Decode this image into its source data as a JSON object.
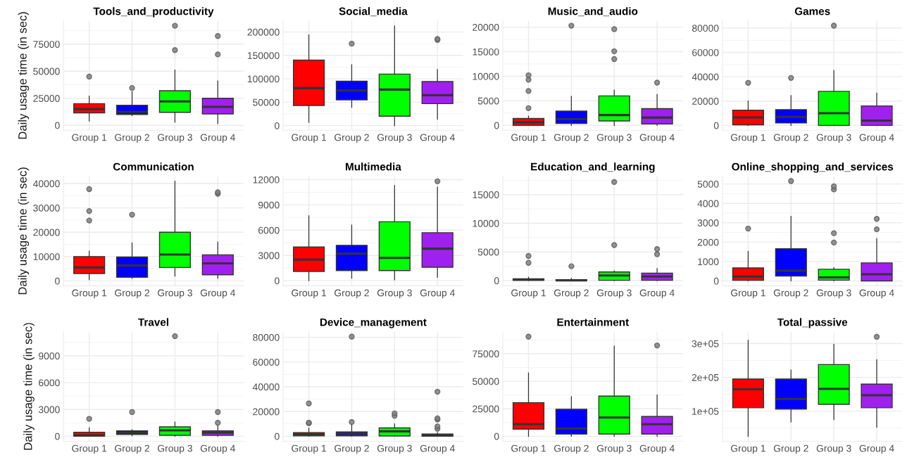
{
  "chart_data": [
    {
      "type": "box",
      "title": "Tools_and_productivity",
      "ylabel": "Daily usage time (in sec)",
      "categories": [
        "Group 1",
        "Group 2",
        "Group 3",
        "Group 4"
      ],
      "colors": [
        "#ff0000",
        "#0000ff",
        "#00ff00",
        "#a020f0"
      ],
      "ylim": [
        -4600,
        96600
      ],
      "yticks": [
        0,
        25000,
        50000,
        75000
      ],
      "grid": true,
      "boxes": [
        {
          "low": 4000,
          "q1": 11500,
          "median": 15000,
          "q3": 20000,
          "high": 27000,
          "outliers": [
            45000
          ]
        },
        {
          "low": 9000,
          "q1": 10000,
          "median": 12500,
          "q3": 18500,
          "high": 31000,
          "outliers": [
            34500
          ]
        },
        {
          "low": 3000,
          "q1": 12000,
          "median": 22000,
          "q3": 32000,
          "high": 51000,
          "outliers": [
            69500,
            92000
          ]
        },
        {
          "low": 1500,
          "q1": 10500,
          "median": 17000,
          "q3": 25000,
          "high": 41000,
          "outliers": [
            65500,
            82500
          ]
        }
      ]
    },
    {
      "type": "box",
      "title": "Social_media",
      "categories": [
        "Group 1",
        "Group 2",
        "Group 3",
        "Group 4"
      ],
      "colors": [
        "#ff0000",
        "#0000ff",
        "#00ff00",
        "#a020f0"
      ],
      "ylim": [
        -10000,
        224000
      ],
      "yticks": [
        0,
        50000,
        100000,
        150000,
        200000
      ],
      "grid": true,
      "boxes": [
        {
          "low": 7000,
          "q1": 43000,
          "median": 80000,
          "q3": 140000,
          "high": 194000
        },
        {
          "low": 39000,
          "q1": 55000,
          "median": 75000,
          "q3": 95000,
          "high": 130000,
          "outliers": [
            175000
          ]
        },
        {
          "low": 0,
          "q1": 20000,
          "median": 77000,
          "q3": 110000,
          "high": 213000
        },
        {
          "low": 14000,
          "q1": 47000,
          "median": 65000,
          "q3": 94000,
          "high": 120000,
          "outliers": [
            183000,
            185000
          ]
        }
      ]
    },
    {
      "type": "box",
      "title": "Music_and_audio",
      "categories": [
        "Group 1",
        "Group 2",
        "Group 3",
        "Group 4"
      ],
      "colors": [
        "#ff0000",
        "#0000ff",
        "#00ff00",
        "#a020f0"
      ],
      "ylim": [
        -1000,
        21300
      ],
      "yticks": [
        0,
        5000,
        10000,
        15000,
        20000
      ],
      "grid": true,
      "boxes": [
        {
          "low": 0,
          "q1": 0,
          "median": 600,
          "q3": 1400,
          "high": 1900,
          "outliers": [
            3500,
            7000,
            9300,
            10200
          ]
        },
        {
          "low": 0,
          "q1": 400,
          "median": 1300,
          "q3": 2900,
          "high": 5900,
          "outliers": [
            20300
          ]
        },
        {
          "low": 0,
          "q1": 900,
          "median": 2100,
          "q3": 6000,
          "high": 7200,
          "outliers": [
            13500,
            15100,
            19600
          ]
        },
        {
          "low": 0,
          "q1": 300,
          "median": 1600,
          "q3": 3400,
          "high": 6300,
          "outliers": [
            8700
          ]
        }
      ]
    },
    {
      "type": "box",
      "title": "Games",
      "categories": [
        "Group 1",
        "Group 2",
        "Group 3",
        "Group 4"
      ],
      "colors": [
        "#ff0000",
        "#0000ff",
        "#00ff00",
        "#a020f0"
      ],
      "ylim": [
        -4000,
        86000
      ],
      "yticks": [
        0,
        20000,
        40000,
        60000,
        80000
      ],
      "grid": true,
      "boxes": [
        {
          "low": 0,
          "q1": 500,
          "median": 6500,
          "q3": 12500,
          "high": 20000,
          "outliers": [
            35000
          ]
        },
        {
          "low": 0,
          "q1": 2000,
          "median": 7000,
          "q3": 13000,
          "high": 24500,
          "outliers": [
            39000
          ]
        },
        {
          "low": 0,
          "q1": 0,
          "median": 10000,
          "q3": 28000,
          "high": 45000,
          "outliers": [
            82000
          ]
        },
        {
          "low": 0,
          "q1": 0,
          "median": 4000,
          "q3": 16000,
          "high": 26500
        }
      ]
    },
    {
      "type": "box",
      "title": "Communication",
      "ylabel": "Daily usage time (in sec)",
      "categories": [
        "Group 1",
        "Group 2",
        "Group 3",
        "Group 4"
      ],
      "colors": [
        "#ff0000",
        "#0000ff",
        "#00ff00",
        "#a020f0"
      ],
      "ylim": [
        -2000,
        43000
      ],
      "yticks": [
        0,
        10000,
        20000,
        30000,
        40000
      ],
      "grid": true,
      "boxes": [
        {
          "low": 500,
          "q1": 3000,
          "median": 5500,
          "q3": 10000,
          "high": 12200,
          "outliers": [
            24800,
            28700,
            37700
          ]
        },
        {
          "low": 1000,
          "q1": 1500,
          "median": 6300,
          "q3": 9800,
          "high": 15600,
          "outliers": [
            27200
          ]
        },
        {
          "low": 2000,
          "q1": 5500,
          "median": 10800,
          "q3": 20000,
          "high": 41000
        },
        {
          "low": 1000,
          "q1": 2500,
          "median": 7200,
          "q3": 10700,
          "high": 16000,
          "outliers": [
            35800,
            36400
          ]
        }
      ]
    },
    {
      "type": "box",
      "title": "Multimedia",
      "categories": [
        "Group 1",
        "Group 2",
        "Group 3",
        "Group 4"
      ],
      "colors": [
        "#ff0000",
        "#0000ff",
        "#00ff00",
        "#a020f0"
      ],
      "ylim": [
        -600,
        12400
      ],
      "yticks": [
        0,
        3000,
        6000,
        9000,
        12000
      ],
      "grid": true,
      "boxes": [
        {
          "low": 0,
          "q1": 1100,
          "median": 2500,
          "q3": 4000,
          "high": 7700
        },
        {
          "low": 300,
          "q1": 1200,
          "median": 3200,
          "q3": 4200,
          "high": 6600
        },
        {
          "low": 100,
          "q1": 1200,
          "median": 2700,
          "q3": 7000,
          "high": 11300
        },
        {
          "low": 400,
          "q1": 1600,
          "median": 3800,
          "q3": 5700,
          "high": 11100,
          "outliers": [
            11800
          ]
        }
      ]
    },
    {
      "type": "box",
      "title": "Education_and_learning",
      "categories": [
        "Group 1",
        "Group 2",
        "Group 3",
        "Group 4"
      ],
      "colors": [
        "#ff0000",
        "#0000ff",
        "#00ff00",
        "#a020f0"
      ],
      "ylim": [
        -900,
        18200
      ],
      "yticks": [
        0,
        5000,
        10000,
        15000
      ],
      "grid": true,
      "boxes": [
        {
          "low": 0,
          "q1": 50,
          "median": 150,
          "q3": 300,
          "high": 600,
          "outliers": [
            3100,
            4300
          ]
        },
        {
          "low": 0,
          "q1": 0,
          "median": 50,
          "q3": 150,
          "high": 400,
          "outliers": [
            2500
          ]
        },
        {
          "low": 0,
          "q1": 50,
          "median": 900,
          "q3": 1500,
          "high": 1700,
          "outliers": [
            6200,
            17200
          ]
        },
        {
          "low": 0,
          "q1": 50,
          "median": 700,
          "q3": 1300,
          "high": 2100,
          "outliers": [
            4600,
            5500
          ]
        }
      ]
    },
    {
      "type": "box",
      "title": "Online_shopping_and_services",
      "categories": [
        "Group 1",
        "Group 2",
        "Group 3",
        "Group 4"
      ],
      "colors": [
        "#ff0000",
        "#0000ff",
        "#00ff00",
        "#a020f0"
      ],
      "ylim": [
        -250,
        5400
      ],
      "yticks": [
        0,
        1000,
        2000,
        3000,
        4000,
        5000
      ],
      "grid": true,
      "boxes": [
        {
          "low": 0,
          "q1": 30,
          "median": 220,
          "q3": 670,
          "high": 1530,
          "outliers": [
            2700
          ]
        },
        {
          "low": 0,
          "q1": 250,
          "median": 530,
          "q3": 1660,
          "high": 3330,
          "outliers": [
            5150
          ]
        },
        {
          "low": 0,
          "q1": 40,
          "median": 180,
          "q3": 600,
          "high": 680,
          "outliers": [
            1980,
            2460,
            4720,
            4880
          ]
        },
        {
          "low": 0,
          "q1": 0,
          "median": 340,
          "q3": 930,
          "high": 2180,
          "outliers": [
            2660,
            3200
          ]
        }
      ]
    },
    {
      "type": "box",
      "title": "Travel",
      "ylabel": "Daily usage time (in sec)",
      "categories": [
        "Group 1",
        "Group 2",
        "Group 3",
        "Group 4"
      ],
      "colors": [
        "#ff0000",
        "#0000ff",
        "#00ff00",
        "#a020f0"
      ],
      "ylim": [
        -560,
        11700
      ],
      "yticks": [
        0,
        3000,
        6000,
        9000
      ],
      "grid": true,
      "boxes": [
        {
          "low": 0,
          "q1": 0,
          "median": 100,
          "q3": 450,
          "high": 950,
          "outliers": [
            1950
          ]
        },
        {
          "low": 50,
          "q1": 200,
          "median": 400,
          "q3": 600,
          "high": 750,
          "outliers": [
            2700
          ]
        },
        {
          "low": 0,
          "q1": 100,
          "median": 650,
          "q3": 1050,
          "high": 1600,
          "outliers": [
            11200
          ]
        },
        {
          "low": 0,
          "q1": 100,
          "median": 400,
          "q3": 600,
          "high": 1200,
          "outliers": [
            1500,
            2700
          ]
        }
      ]
    },
    {
      "type": "box",
      "title": "Device_management",
      "categories": [
        "Group 1",
        "Group 2",
        "Group 3",
        "Group 4"
      ],
      "colors": [
        "#ff0000",
        "#0000ff",
        "#00ff00",
        "#a020f0"
      ],
      "ylim": [
        -4000,
        84500
      ],
      "yticks": [
        0,
        20000,
        40000,
        60000,
        80000
      ],
      "grid": true,
      "boxes": [
        {
          "low": 0,
          "q1": 300,
          "median": 1500,
          "q3": 3000,
          "high": 6500,
          "outliers": [
            10500,
            11000,
            26500
          ]
        },
        {
          "low": 0,
          "q1": 300,
          "median": 2000,
          "q3": 3500,
          "high": 9500,
          "outliers": [
            11500,
            80500
          ]
        },
        {
          "low": 0,
          "q1": 200,
          "median": 4000,
          "q3": 6800,
          "high": 10000,
          "outliers": [
            16500,
            18500
          ]
        },
        {
          "low": 0,
          "q1": 0,
          "median": 800,
          "q3": 1800,
          "high": 3000,
          "outliers": [
            6000,
            8000,
            13500,
            14500,
            36000
          ]
        }
      ]
    },
    {
      "type": "box",
      "title": "Entertainment",
      "categories": [
        "Group 1",
        "Group 2",
        "Group 3",
        "Group 4"
      ],
      "colors": [
        "#ff0000",
        "#0000ff",
        "#00ff00",
        "#a020f0"
      ],
      "ylim": [
        -4500,
        95000
      ],
      "yticks": [
        0,
        25000,
        50000,
        75000
      ],
      "grid": true,
      "boxes": [
        {
          "low": 0,
          "q1": 6500,
          "median": 11000,
          "q3": 30500,
          "high": 57500,
          "outliers": [
            90500
          ]
        },
        {
          "low": 0,
          "q1": 2000,
          "median": 7000,
          "q3": 24500,
          "high": 36000
        },
        {
          "low": 0,
          "q1": 2000,
          "median": 17000,
          "q3": 36500,
          "high": 82000
        },
        {
          "low": 0,
          "q1": 2000,
          "median": 11000,
          "q3": 18000,
          "high": 37500,
          "outliers": [
            82500
          ]
        }
      ]
    },
    {
      "type": "box",
      "title": "Total_passive",
      "categories": [
        "Group 1",
        "Group 2",
        "Group 3",
        "Group 4"
      ],
      "colors": [
        "#ff0000",
        "#0000ff",
        "#00ff00",
        "#a020f0"
      ],
      "ylim": [
        11000,
        335000
      ],
      "yticks": [
        {
          "value": 100000,
          "label": "1e+05"
        },
        {
          "value": 200000,
          "label": "2e+05"
        },
        {
          "value": 300000,
          "label": "3e+05"
        }
      ],
      "grid": true,
      "boxes": [
        {
          "low": 25000,
          "q1": 110000,
          "median": 165000,
          "q3": 195000,
          "high": 310000
        },
        {
          "low": 68000,
          "q1": 106000,
          "median": 136000,
          "q3": 195000,
          "high": 222000
        },
        {
          "low": 75000,
          "q1": 120000,
          "median": 166000,
          "q3": 238000,
          "high": 298000
        },
        {
          "low": 52000,
          "q1": 110000,
          "median": 147000,
          "q3": 180000,
          "high": 252000,
          "outliers": [
            320000
          ]
        }
      ]
    }
  ]
}
